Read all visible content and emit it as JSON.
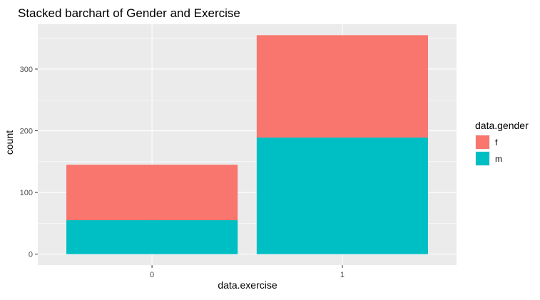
{
  "chart_data": {
    "type": "bar",
    "stacked": true,
    "title": "Stacked barchart of Gender and Exercise",
    "xlabel": "data.exercise",
    "ylabel": "count",
    "categories": [
      "0",
      "1"
    ],
    "series": [
      {
        "name": "f",
        "values": [
          90,
          166
        ],
        "color": "#F8766D"
      },
      {
        "name": "m",
        "values": [
          55,
          189
        ],
        "color": "#00BFC4"
      }
    ],
    "ylim": [
      -17.75,
      372.75
    ],
    "yticks": [
      0,
      100,
      200,
      300
    ],
    "grid": true,
    "legend": {
      "title": "data.gender",
      "position": "right"
    },
    "panel_background": "#EBEBEB",
    "grid_color": "#FFFFFF"
  }
}
